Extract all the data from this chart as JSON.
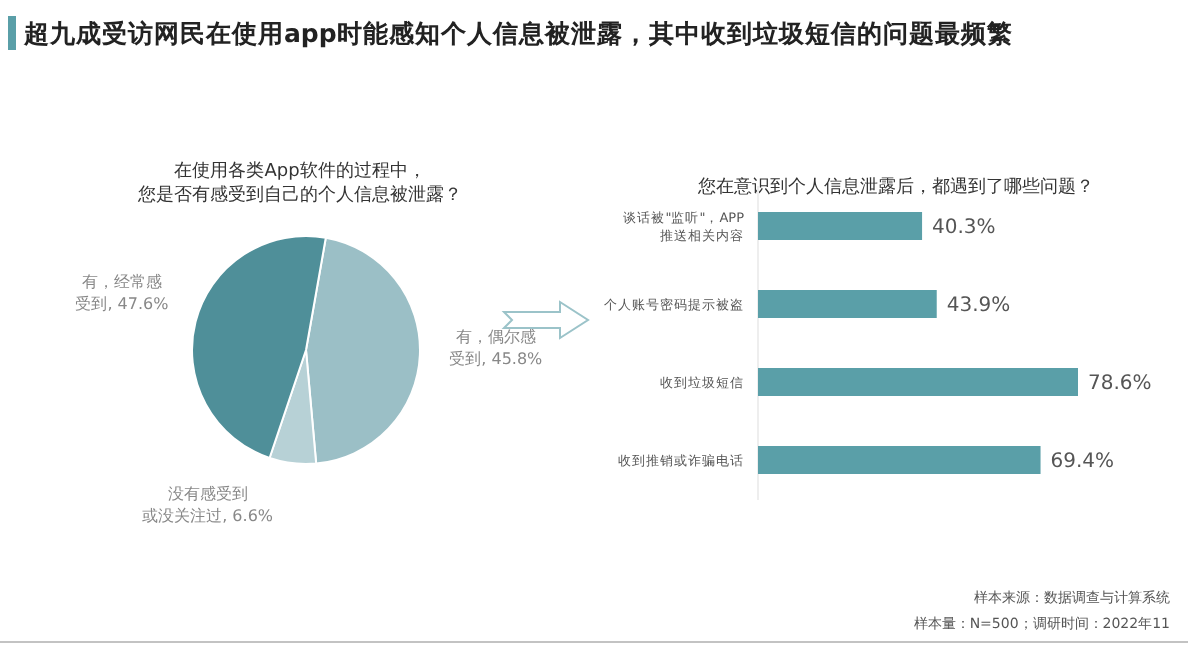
{
  "chart_data": [
    {
      "type": "pie",
      "title": "超九成受访网民在使用app时能感知个人信息被泄露，其中收到垃圾短信的问题最频繁",
      "subtitle": "在使用各类App软件的过程中，您是否有感受到自己的个人信息被泄露？",
      "categories": [
        "有，偶尔感受到",
        "没有感受到或没关注过",
        "有，经常感受到"
      ],
      "values": [
        45.8,
        6.6,
        47.6
      ],
      "value_labels": [
        ", 45.8%",
        ", 6.6%",
        ", 47.6%"
      ],
      "colors": [
        "#9bbfc6",
        "#b7d1d6",
        "#4f8f99"
      ]
    },
    {
      "type": "bar",
      "orientation": "horizontal",
      "title": "您在意识到个人信息泄露后，都遇到了哪些问题？",
      "categories": [
        "谈话被\"监听\"，APP推送相关内容",
        "个人账号密码提示被盗",
        "收到垃圾短信",
        "收到推销或诈骗电话"
      ],
      "values": [
        40.3,
        43.9,
        78.6,
        69.4
      ],
      "value_labels": [
        "40.3%",
        "43.9%",
        "78.6%",
        "69.4%"
      ],
      "color": "#5a9fa8",
      "annotations": [
        "样本来源：数据调查与计算系统",
        "样本量：N=500；调研时间：2022年11"
      ]
    }
  ]
}
